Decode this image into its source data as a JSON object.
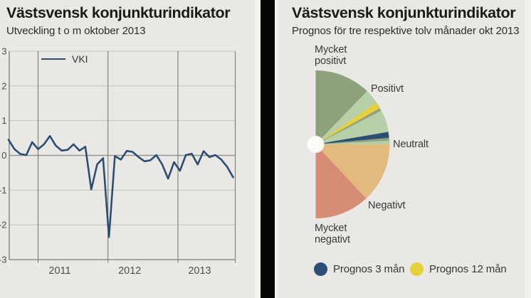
{
  "left_panel": {
    "title": "Västsvensk konjunkturindikator",
    "subtitle": "Utveckling t o m oktober 2013",
    "legend": {
      "label": "VKI"
    },
    "chart_data": {
      "type": "line",
      "title": "Västsvensk konjunkturindikator",
      "subtitle": "Utveckling t o m oktober 2013",
      "ylim": [
        -3,
        3
      ],
      "y_ticks": [
        3,
        2,
        1,
        0,
        -1,
        -2,
        -3
      ],
      "x_tick_labels": [
        "2011",
        "2012",
        "2013"
      ],
      "grid": true,
      "legend_position": "top-left",
      "line_color": "#2c4e75",
      "x_start": "2010-08",
      "x_end": "2013-10",
      "x_interval": "monthly",
      "series": [
        {
          "name": "VKI",
          "values": [
            0.45,
            0.18,
            0.04,
            0.01,
            0.38,
            0.18,
            0.32,
            0.56,
            0.28,
            0.14,
            0.16,
            0.32,
            0.14,
            0.25,
            -0.98,
            -0.26,
            -0.08,
            -2.35,
            -0.02,
            -0.12,
            0.13,
            0.1,
            -0.05,
            -0.17,
            -0.14,
            0.01,
            -0.26,
            -0.67,
            -0.19,
            -0.44,
            0.01,
            0.05,
            -0.26,
            0.12,
            -0.05,
            0.01,
            -0.12,
            -0.33,
            -0.63
          ]
        }
      ]
    }
  },
  "right_panel": {
    "title": "Västsvensk konjunkturindikator",
    "subtitle": "Prognos för tre respektive tolv månader okt 2013",
    "labels": {
      "mycket_positivt": "Mycket\npositivt",
      "positivt": "Positivt",
      "neutralt": "Neutralt",
      "negativt": "Negativt",
      "mycket_negativt": "Mycket\nnegativt"
    },
    "chart_data": {
      "type": "pie",
      "style": "right-facing semicircle gauge, 0deg = up, 180deg = down",
      "scale_labels": [
        {
          "text": "Mycket positivt",
          "angle_deg": 0
        },
        {
          "text": "Positivt",
          "angle_deg": 45
        },
        {
          "text": "Neutralt",
          "angle_deg": 90
        },
        {
          "text": "Negativt",
          "angle_deg": 135
        },
        {
          "text": "Mycket negativt",
          "angle_deg": 180
        }
      ],
      "segments": [
        {
          "key": "mycket-positivt-range",
          "from_deg": 0,
          "to_deg": 44,
          "color": "#8ca17c"
        },
        {
          "key": "positivt-range",
          "from_deg": 44,
          "to_deg": 90,
          "color": "#b7cfa8"
        },
        {
          "key": "neutralt-range",
          "from_deg": 90,
          "to_deg": 137,
          "color": "#e2ba7d"
        },
        {
          "key": "negativt-range",
          "from_deg": 137,
          "to_deg": 180,
          "color": "#d78d75"
        }
      ],
      "needles": [
        {
          "key": "prognos-12-man",
          "label": "Prognos 12 mån",
          "angle_deg": 58,
          "width_deg": 5,
          "color": "#e6d03c"
        },
        {
          "key": "prognos-3-man",
          "label": "Prognos 3 mån",
          "angle_deg": 82.5,
          "width_deg": 4.6,
          "color": "#2c4e75"
        }
      ],
      "hub_color": "#fcfbf7"
    },
    "legend": [
      {
        "key": "prognos-3-man",
        "label": "Prognos 3 mån",
        "color": "#2c4e75"
      },
      {
        "key": "prognos-12-man",
        "label": "Prognos 12 mån",
        "color": "#e6d03c"
      }
    ]
  },
  "colors": {
    "background": "#e9e8e4",
    "divider_black": "#040404",
    "divider_white": "#f4f3ef",
    "accent_blue": "#2c4e75",
    "accent_yellow": "#e6d03c",
    "green_dark": "#8ca17c",
    "green_light": "#b7cfa8",
    "tan": "#e2ba7d",
    "salmon": "#d78d75",
    "grid_light": "#c6c5c1",
    "grid_dark": "#7d7b77",
    "tick_text": "#514f4b"
  }
}
